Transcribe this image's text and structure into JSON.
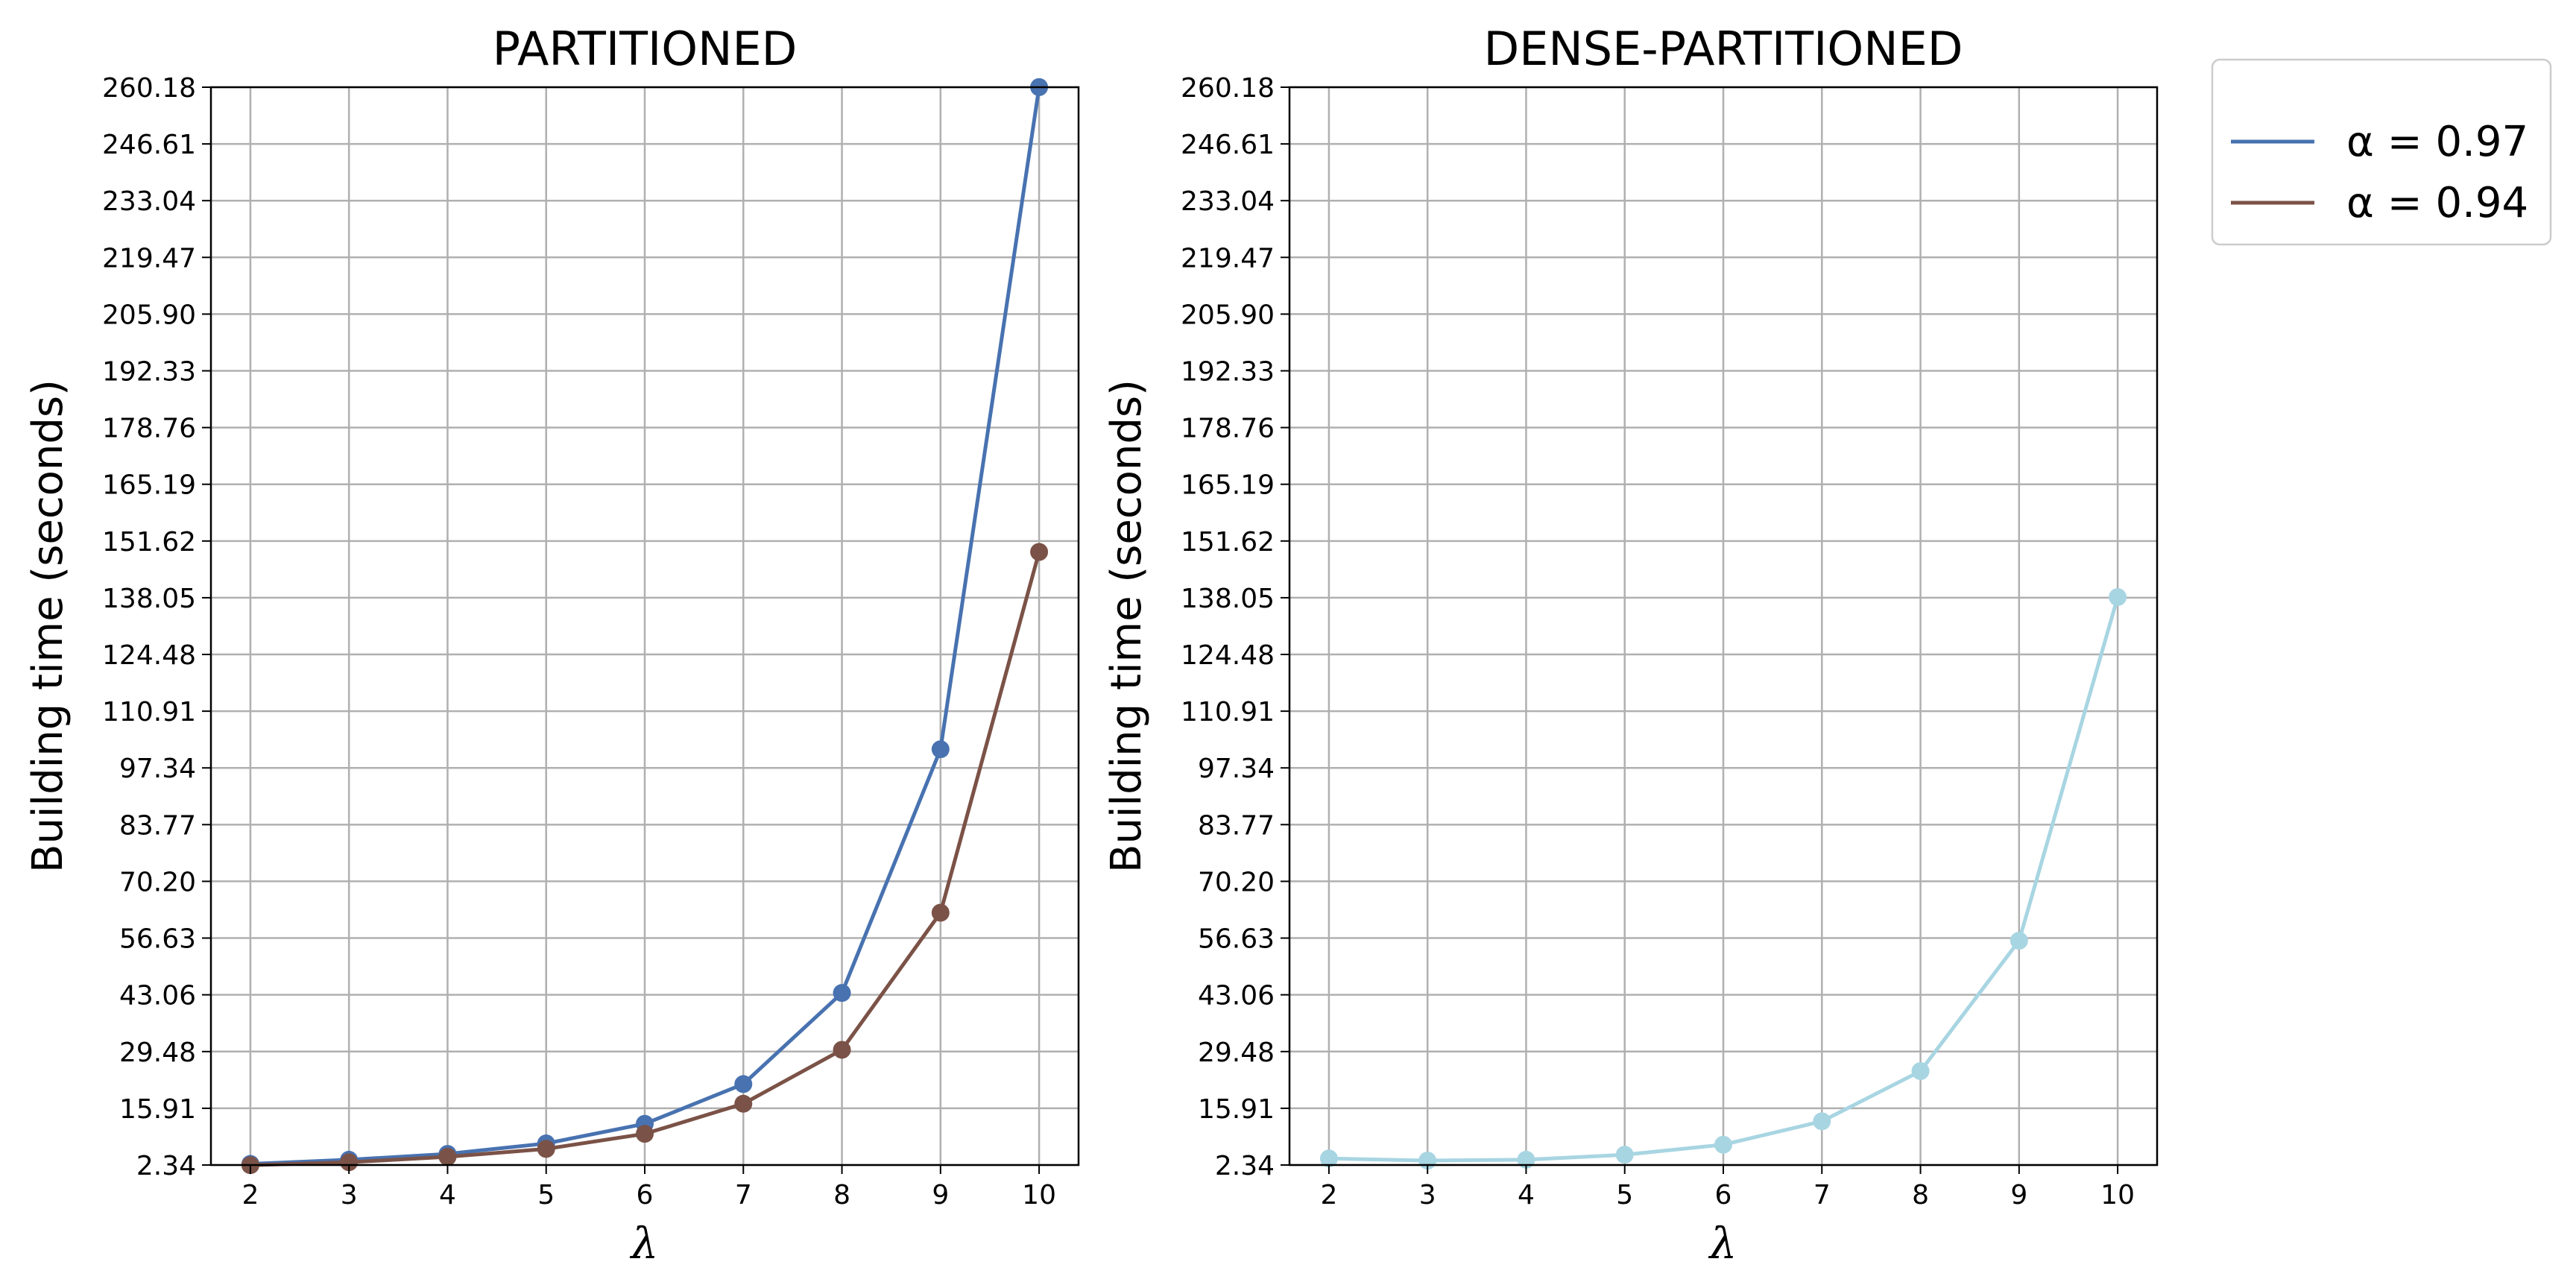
{
  "chart_data": [
    {
      "type": "line",
      "title": "PARTITIONED",
      "xlabel": "λ",
      "ylabel": "Building time (seconds)",
      "x": [
        2,
        3,
        4,
        5,
        6,
        7,
        8,
        9,
        10
      ],
      "xlim": [
        1.6,
        10.4
      ],
      "ylim": [
        2.34,
        260.18
      ],
      "yticks": [
        "2.34",
        "15.91",
        "29.48",
        "43.06",
        "56.63",
        "70.20",
        "83.77",
        "97.34",
        "110.91",
        "124.48",
        "138.05",
        "151.62",
        "165.19",
        "178.76",
        "192.33",
        "205.90",
        "219.47",
        "233.04",
        "246.61",
        "260.18"
      ],
      "grid": true,
      "series": [
        {
          "name": "α = 0.97",
          "color": "#4872b0",
          "values": [
            2.6,
            3.6,
            5.0,
            7.5,
            12.2,
            21.7,
            43.5,
            101.8,
            260.2
          ]
        },
        {
          "name": "α = 0.94",
          "color": "#7b5247",
          "values": [
            2.3,
            3.0,
            4.3,
            6.2,
            9.8,
            17.0,
            29.9,
            62.7,
            149.0
          ]
        }
      ]
    },
    {
      "type": "line",
      "title": "DENSE-PARTITIONED",
      "xlabel": "λ",
      "ylabel": "Building time (seconds)",
      "x": [
        2,
        3,
        4,
        5,
        6,
        7,
        8,
        9,
        10
      ],
      "xlim": [
        1.6,
        10.4
      ],
      "ylim": [
        2.34,
        260.18
      ],
      "yticks": [
        "2.34",
        "15.91",
        "29.48",
        "43.06",
        "56.63",
        "70.20",
        "83.77",
        "97.34",
        "110.91",
        "124.48",
        "138.05",
        "151.62",
        "165.19",
        "178.76",
        "192.33",
        "205.90",
        "219.47",
        "233.04",
        "246.61",
        "260.18"
      ],
      "grid": true,
      "series": [
        {
          "color": "#a8d5e2",
          "values": [
            3.9,
            3.4,
            3.6,
            4.8,
            7.2,
            12.8,
            24.8,
            56.0,
            138.2
          ]
        }
      ]
    }
  ],
  "legend": {
    "placement": "outside-right-top",
    "items": [
      {
        "label": "α = 0.97",
        "color": "#4872b0"
      },
      {
        "label": "α = 0.94",
        "color": "#7b5247"
      }
    ]
  }
}
